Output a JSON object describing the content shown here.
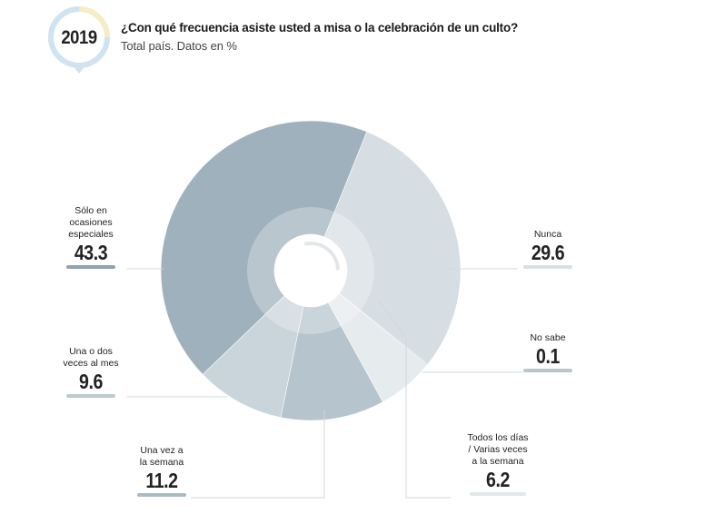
{
  "header": {
    "year": "2019",
    "title": "¿Con qué frecuencia asiste usted a misa o la celebración de un culto?",
    "subtitle": "Total país. Datos en %"
  },
  "colors": {
    "badge_ring_blue": "#cfe3f2",
    "badge_ring_yellow": "#f5ecc4",
    "line": "#cfd8de"
  },
  "chart_data": {
    "type": "pie",
    "style": "donut",
    "unit": "%",
    "slices": [
      {
        "label": "Nunca",
        "value": 29.6,
        "color": "#d6dee3",
        "bar_color": "#d9e0e4"
      },
      {
        "label": "No sabe",
        "value": 0.1,
        "color": "#c7d2d9",
        "bar_color": "#b9c6ce"
      },
      {
        "label": "Todos los días / Varias veces a la semana",
        "value": 6.2,
        "color": "#e6ebee",
        "bar_color": "#e2e7ea"
      },
      {
        "label": "Una vez a la semana",
        "value": 11.2,
        "color": "#b5c4cd",
        "bar_color": "#a9bac4"
      },
      {
        "label": "Una o dos veces al mes",
        "value": 9.6,
        "color": "#c9d4db",
        "bar_color": "#bccad2"
      },
      {
        "label": "Sólo en ocasiones especiales",
        "value": 43.3,
        "color": "#9eb1bc",
        "bar_color": "#8fa4b1"
      }
    ]
  },
  "labels": {
    "nunca": {
      "text": "Nunca",
      "value": "29.6"
    },
    "no_sabe": {
      "text": "No sabe",
      "value": "0.1"
    },
    "todos": {
      "line1": "Todos los días",
      "line2": "/ Varias veces",
      "line3": "a la semana",
      "value": "6.2"
    },
    "una_vez": {
      "line1": "Una vez a",
      "line2": "la semana",
      "value": "11.2"
    },
    "una_dos": {
      "line1": "Una o dos",
      "line2": "veces al  mes",
      "value": "9.6"
    },
    "solo": {
      "line1": "Sólo en",
      "line2": "ocasiones",
      "line3": "especiales",
      "value": "43.3"
    }
  }
}
